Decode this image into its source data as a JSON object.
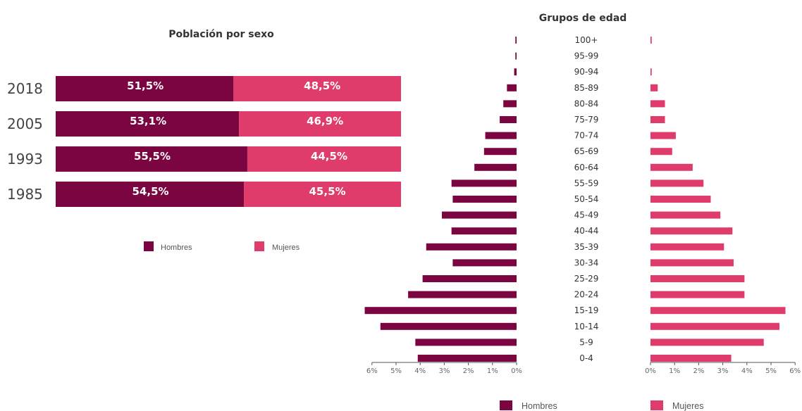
{
  "colors": {
    "hombres": "#7b0540",
    "mujeres": "#e03c6b"
  },
  "chart_data": [
    {
      "type": "bar",
      "orientation": "horizontal",
      "stacked": "percent",
      "title": "Población por sexo",
      "categories": [
        "2018",
        "2005",
        "1993",
        "1985"
      ],
      "series": [
        {
          "name": "Hombres",
          "values": [
            51.5,
            53.1,
            55.5,
            54.5
          ],
          "labels": [
            "51,5%",
            "53,1%",
            "55,5%",
            "54,5%"
          ]
        },
        {
          "name": "Mujeres",
          "values": [
            48.5,
            46.9,
            44.5,
            45.5
          ],
          "labels": [
            "48,5%",
            "46,9%",
            "44,5%",
            "45,5%"
          ]
        }
      ],
      "legend": [
        "Hombres",
        "Mujeres"
      ],
      "legend_position": "bottom"
    },
    {
      "type": "bar",
      "orientation": "horizontal",
      "subtype": "population-pyramid",
      "title": "Grupos de edad",
      "categories": [
        "100+",
        "95-99",
        "90-94",
        "85-89",
        "80-84",
        "75-79",
        "70-74",
        "65-69",
        "60-64",
        "55-59",
        "50-54",
        "45-49",
        "40-44",
        "35-39",
        "30-34",
        "25-29",
        "20-24",
        "15-19",
        "10-14",
        "5-9",
        "0-4"
      ],
      "series": [
        {
          "name": "Hombres",
          "values": [
            0.05,
            0.05,
            0.1,
            0.4,
            0.55,
            0.7,
            1.3,
            1.35,
            1.75,
            2.7,
            2.65,
            3.1,
            2.7,
            3.75,
            2.65,
            3.9,
            4.5,
            6.3,
            5.65,
            4.2,
            4.1
          ]
        },
        {
          "name": "Mujeres",
          "values": [
            0.05,
            0.0,
            0.05,
            0.3,
            0.6,
            0.6,
            1.05,
            0.9,
            1.75,
            2.2,
            2.5,
            2.9,
            3.4,
            3.05,
            3.45,
            3.9,
            3.9,
            5.6,
            5.35,
            4.7,
            3.35
          ]
        }
      ],
      "xlim": [
        0,
        6
      ],
      "x_tick_labels": [
        "0%",
        "1%",
        "2%",
        "3%",
        "4%",
        "5%",
        "6%"
      ],
      "legend": [
        "Hombres",
        "Mujeres"
      ],
      "legend_position": "bottom"
    }
  ]
}
